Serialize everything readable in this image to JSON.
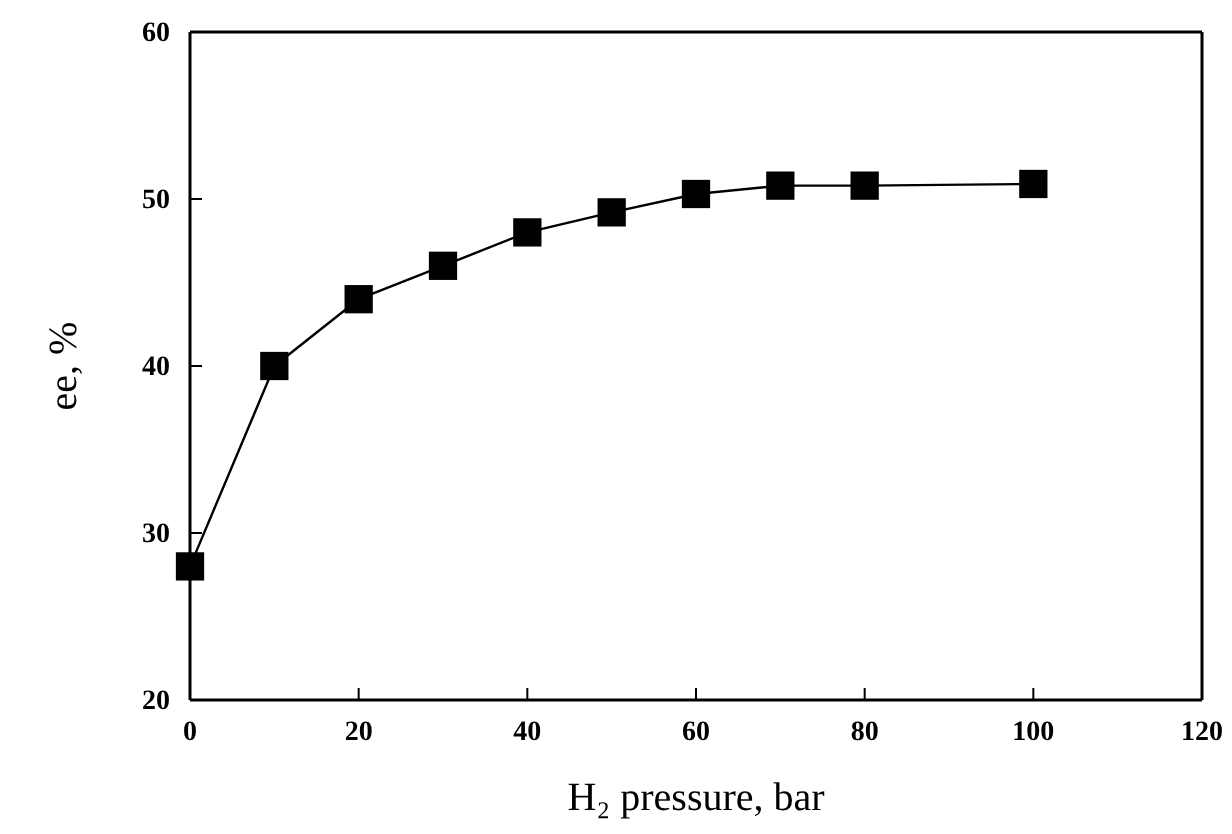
{
  "chart_data": {
    "type": "line",
    "xlabel": "H₂ pressure, bar",
    "ylabel": "ee, %",
    "x": [
      0,
      10,
      20,
      30,
      40,
      50,
      60,
      70,
      80,
      100
    ],
    "series": [
      {
        "color": "#000000",
        "values": [
          28,
          40,
          44,
          46,
          48,
          49.2,
          50.3,
          50.8,
          50.8,
          50.9
        ]
      }
    ],
    "xlim": [
      0,
      120
    ],
    "xticks": [
      0,
      20,
      40,
      60,
      80,
      100,
      120
    ],
    "ylim": [
      20,
      60
    ],
    "yticks": [
      20,
      30,
      40,
      50,
      60
    ],
    "marker": "square",
    "line_style": "solid",
    "grid": false
  }
}
